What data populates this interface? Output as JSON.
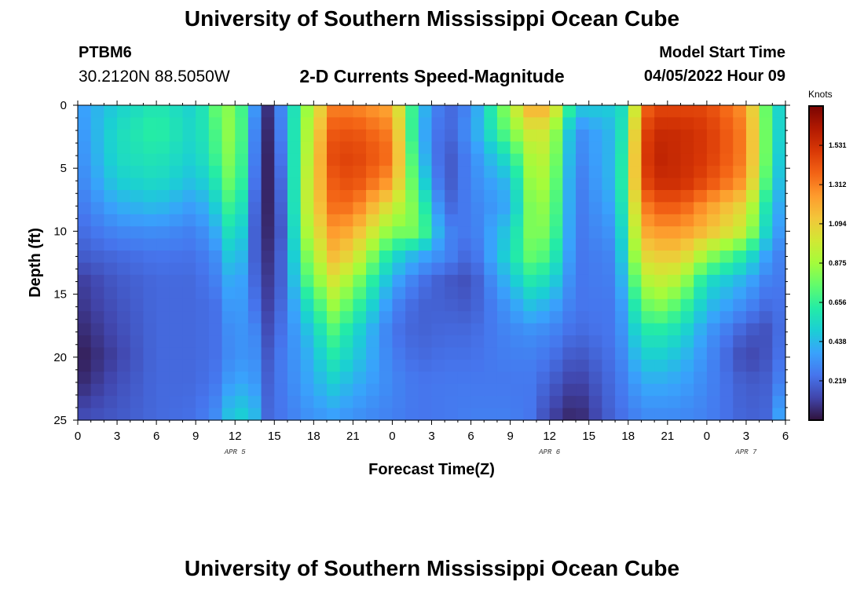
{
  "header": {
    "title": "University of Southern Mississippi Ocean Cube",
    "station_id": "PTBM6",
    "station_coords": "30.2120N  88.5050W",
    "subtitle": "2-D Currents Speed-Magnitude",
    "model_label": "Model Start Time",
    "model_time": "04/05/2022 Hour 09"
  },
  "footer": {
    "title": "University of Southern Mississippi Ocean Cube"
  },
  "chart_data": {
    "type": "heatmap",
    "xlabel": "Forecast Time(Z)",
    "ylabel": "Depth (ft)",
    "colorbar_label": "Knots",
    "x_tick_labels": [
      "0",
      "3",
      "6",
      "9",
      "12",
      "15",
      "18",
      "21",
      "0",
      "3",
      "6",
      "9",
      "12",
      "15",
      "18",
      "21",
      "0",
      "3",
      "6"
    ],
    "date_labels": [
      {
        "label": "APR 5",
        "hour": 12
      },
      {
        "label": "APR 6",
        "hour": 36
      },
      {
        "label": "APR 7",
        "hour": 51
      }
    ],
    "y_ticks": [
      0,
      5,
      10,
      15,
      20,
      25
    ],
    "xlim": [
      0,
      54
    ],
    "ylim": [
      0,
      25
    ],
    "colorbar_ticks": [
      1.531,
      1.312,
      1.094,
      0.875,
      0.656,
      0.438,
      0.219
    ],
    "colorbar_range": [
      0,
      1.75
    ],
    "colormap": [
      "#30123b",
      "#4145ab",
      "#4675ed",
      "#39a2fc",
      "#1bcfd4",
      "#24eca6",
      "#61fc6c",
      "#a4fc3b",
      "#d1e834",
      "#f3c63a",
      "#fe9b2d",
      "#f36315",
      "#d93806",
      "#b11901",
      "#7a0403"
    ],
    "depths": [
      0,
      2,
      4,
      6,
      8,
      10,
      12,
      14,
      16,
      18,
      20,
      22,
      25
    ],
    "hours": [
      0,
      3,
      6,
      9,
      10.5,
      12,
      13.5,
      14.5,
      15.5,
      17.5,
      19.5,
      21,
      24,
      26,
      28,
      30,
      33,
      34.5,
      36,
      38,
      41,
      42,
      43,
      44.5,
      46,
      48,
      51,
      53,
      54
    ],
    "speeds": [
      [
        0.35,
        0.5,
        0.6,
        0.5,
        0.75,
        0.85,
        0.35,
        0.08,
        0.3,
        0.85,
        1.3,
        1.3,
        1.2,
        0.5,
        0.2,
        0.3,
        0.9,
        1.2,
        1.2,
        0.5,
        0.5,
        0.6,
        1.35,
        1.45,
        1.45,
        1.45,
        1.25,
        0.6,
        0.45
      ],
      [
        0.32,
        0.55,
        0.65,
        0.52,
        0.7,
        0.9,
        0.3,
        0.06,
        0.28,
        0.9,
        1.4,
        1.42,
        1.3,
        0.45,
        0.18,
        0.35,
        0.8,
        1.0,
        1.0,
        0.3,
        0.45,
        0.7,
        1.45,
        1.55,
        1.55,
        1.5,
        1.3,
        0.6,
        0.45
      ],
      [
        0.3,
        0.55,
        0.6,
        0.5,
        0.68,
        0.88,
        0.28,
        0.05,
        0.25,
        0.92,
        1.45,
        1.48,
        1.35,
        0.5,
        0.15,
        0.3,
        0.6,
        0.9,
        0.95,
        0.28,
        0.45,
        0.75,
        1.48,
        1.58,
        1.55,
        1.5,
        1.3,
        0.6,
        0.4
      ],
      [
        0.28,
        0.5,
        0.55,
        0.45,
        0.6,
        0.85,
        0.25,
        0.05,
        0.22,
        0.95,
        1.4,
        1.45,
        1.25,
        0.6,
        0.15,
        0.3,
        0.45,
        0.85,
        0.9,
        0.25,
        0.45,
        0.78,
        1.45,
        1.55,
        1.55,
        1.45,
        1.25,
        0.55,
        0.38
      ],
      [
        0.25,
        0.4,
        0.45,
        0.35,
        0.5,
        0.75,
        0.22,
        0.05,
        0.2,
        0.95,
        1.35,
        1.35,
        1.0,
        0.75,
        0.2,
        0.28,
        0.4,
        0.8,
        0.85,
        0.25,
        0.4,
        0.75,
        1.3,
        1.4,
        1.4,
        1.25,
        1.05,
        0.45,
        0.35
      ],
      [
        0.22,
        0.3,
        0.32,
        0.28,
        0.4,
        0.65,
        0.2,
        0.06,
        0.18,
        0.9,
        1.25,
        1.2,
        0.8,
        0.8,
        0.3,
        0.25,
        0.5,
        0.8,
        0.8,
        0.25,
        0.35,
        0.7,
        1.2,
        1.25,
        1.25,
        1.15,
        0.95,
        0.4,
        0.32
      ],
      [
        0.18,
        0.22,
        0.25,
        0.24,
        0.32,
        0.55,
        0.2,
        0.08,
        0.2,
        0.8,
        1.15,
        1.05,
        0.55,
        0.4,
        0.3,
        0.2,
        0.55,
        0.75,
        0.7,
        0.25,
        0.3,
        0.65,
        1.05,
        1.1,
        1.1,
        0.85,
        0.6,
        0.3,
        0.28
      ],
      [
        0.1,
        0.18,
        0.22,
        0.22,
        0.28,
        0.45,
        0.22,
        0.1,
        0.2,
        0.7,
        1.0,
        0.85,
        0.4,
        0.25,
        0.18,
        0.15,
        0.45,
        0.6,
        0.55,
        0.25,
        0.28,
        0.55,
        0.9,
        0.95,
        0.9,
        0.55,
        0.4,
        0.25,
        0.28
      ],
      [
        0.08,
        0.16,
        0.22,
        0.22,
        0.24,
        0.4,
        0.25,
        0.12,
        0.22,
        0.55,
        0.85,
        0.7,
        0.3,
        0.2,
        0.2,
        0.18,
        0.35,
        0.45,
        0.4,
        0.25,
        0.26,
        0.45,
        0.75,
        0.8,
        0.7,
        0.45,
        0.3,
        0.2,
        0.28
      ],
      [
        0.05,
        0.14,
        0.22,
        0.22,
        0.24,
        0.35,
        0.3,
        0.15,
        0.24,
        0.45,
        0.7,
        0.55,
        0.25,
        0.2,
        0.22,
        0.22,
        0.3,
        0.32,
        0.3,
        0.22,
        0.26,
        0.4,
        0.6,
        0.6,
        0.55,
        0.35,
        0.18,
        0.15,
        0.3
      ],
      [
        0.02,
        0.12,
        0.22,
        0.22,
        0.24,
        0.34,
        0.32,
        0.18,
        0.26,
        0.4,
        0.6,
        0.5,
        0.28,
        0.22,
        0.24,
        0.24,
        0.28,
        0.28,
        0.25,
        0.16,
        0.25,
        0.35,
        0.5,
        0.5,
        0.45,
        0.32,
        0.12,
        0.18,
        0.3
      ],
      [
        0.05,
        0.15,
        0.22,
        0.22,
        0.26,
        0.4,
        0.35,
        0.2,
        0.26,
        0.38,
        0.5,
        0.42,
        0.3,
        0.25,
        0.26,
        0.26,
        0.26,
        0.26,
        0.2,
        0.1,
        0.24,
        0.3,
        0.4,
        0.4,
        0.38,
        0.3,
        0.18,
        0.2,
        0.35
      ],
      [
        0.15,
        0.18,
        0.22,
        0.24,
        0.32,
        0.55,
        0.45,
        0.22,
        0.25,
        0.32,
        0.35,
        0.32,
        0.28,
        0.25,
        0.26,
        0.28,
        0.28,
        0.25,
        0.12,
        0.03,
        0.22,
        0.25,
        0.3,
        0.3,
        0.3,
        0.28,
        0.2,
        0.22,
        0.55
      ]
    ],
    "cells": {
      "columns": 54,
      "rows": 26
    }
  }
}
